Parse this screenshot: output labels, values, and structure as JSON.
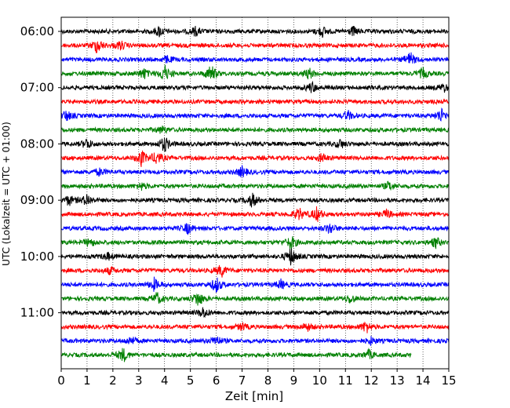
{
  "chart_data": {
    "type": "line",
    "title": "",
    "xlabel": "Zeit  [min]",
    "ylabel": "UTC (Lokalzeit = UTC + 01:00)",
    "xlim": [
      0,
      15
    ],
    "x_ticks": [
      "0",
      "1",
      "2",
      "3",
      "4",
      "5",
      "6",
      "7",
      "8",
      "9",
      "10",
      "11",
      "12",
      "13",
      "14",
      "15"
    ],
    "grid": "vertical-dotted",
    "y_ticks": [
      {
        "label": "06:00",
        "row": 0
      },
      {
        "label": "07:00",
        "row": 4
      },
      {
        "label": "08:00",
        "row": 8
      },
      {
        "label": "09:00",
        "row": 12
      },
      {
        "label": "10:00",
        "row": 16
      },
      {
        "label": "11:00",
        "row": 20
      }
    ],
    "color_cycle": [
      "#000000",
      "#ff0000",
      "#0000ff",
      "#008000"
    ],
    "rows": [
      {
        "start": "06:00",
        "end_minute": 15,
        "events": [
          {
            "t": 3.8,
            "amp": 0.6
          },
          {
            "t": 5.2,
            "amp": 0.5
          },
          {
            "t": 10.1,
            "amp": 0.6
          },
          {
            "t": 11.3,
            "amp": 0.5
          }
        ]
      },
      {
        "start": "06:15",
        "end_minute": 15,
        "events": [
          {
            "t": 1.4,
            "amp": 0.9
          },
          {
            "t": 2.3,
            "amp": 0.5
          }
        ]
      },
      {
        "start": "06:30",
        "end_minute": 15,
        "events": [
          {
            "t": 13.5,
            "amp": 0.8
          },
          {
            "t": 4.1,
            "amp": 0.4
          }
        ]
      },
      {
        "start": "06:45",
        "end_minute": 15,
        "events": [
          {
            "t": 4.0,
            "amp": 1.0
          },
          {
            "t": 5.8,
            "amp": 1.0
          },
          {
            "t": 3.2,
            "amp": 0.6
          },
          {
            "t": 9.6,
            "amp": 0.6
          },
          {
            "t": 14.0,
            "amp": 0.6
          }
        ]
      },
      {
        "start": "07:00",
        "end_minute": 15,
        "events": [
          {
            "t": 9.7,
            "amp": 0.6
          },
          {
            "t": 14.8,
            "amp": 0.5
          }
        ]
      },
      {
        "start": "07:15",
        "end_minute": 15,
        "events": []
      },
      {
        "start": "07:30",
        "end_minute": 15,
        "events": [
          {
            "t": 14.7,
            "amp": 0.8
          },
          {
            "t": 0.2,
            "amp": 0.6
          },
          {
            "t": 11.1,
            "amp": 0.5
          }
        ]
      },
      {
        "start": "07:45",
        "end_minute": 15,
        "events": [
          {
            "t": 3.9,
            "amp": 0.4
          }
        ]
      },
      {
        "start": "08:00",
        "end_minute": 15,
        "events": [
          {
            "t": 4.0,
            "amp": 0.9
          },
          {
            "t": 1.0,
            "amp": 0.6
          },
          {
            "t": 10.8,
            "amp": 0.5
          }
        ]
      },
      {
        "start": "08:15",
        "end_minute": 15,
        "events": [
          {
            "t": 3.1,
            "amp": 0.9
          },
          {
            "t": 3.7,
            "amp": 0.8
          },
          {
            "t": 10.1,
            "amp": 0.5
          }
        ]
      },
      {
        "start": "08:30",
        "end_minute": 15,
        "events": [
          {
            "t": 7.0,
            "amp": 0.6
          },
          {
            "t": 1.5,
            "amp": 0.4
          }
        ]
      },
      {
        "start": "08:45",
        "end_minute": 15,
        "events": [
          {
            "t": 12.7,
            "amp": 0.5
          },
          {
            "t": 3.1,
            "amp": 0.4
          }
        ]
      },
      {
        "start": "09:00",
        "end_minute": 15,
        "events": [
          {
            "t": 7.4,
            "amp": 0.8
          },
          {
            "t": 1.0,
            "amp": 0.7
          },
          {
            "t": 0.3,
            "amp": 0.6
          }
        ]
      },
      {
        "start": "09:15",
        "end_minute": 15,
        "events": [
          {
            "t": 9.2,
            "amp": 0.7
          },
          {
            "t": 9.9,
            "amp": 0.8
          },
          {
            "t": 12.6,
            "amp": 0.5
          }
        ]
      },
      {
        "start": "09:30",
        "end_minute": 15,
        "events": [
          {
            "t": 4.9,
            "amp": 0.6
          },
          {
            "t": 10.4,
            "amp": 0.6
          }
        ]
      },
      {
        "start": "09:45",
        "end_minute": 15,
        "events": [
          {
            "t": 8.9,
            "amp": 0.8
          },
          {
            "t": 14.5,
            "amp": 0.6
          },
          {
            "t": 1.1,
            "amp": 0.5
          }
        ]
      },
      {
        "start": "10:00",
        "end_minute": 15,
        "events": [
          {
            "t": 8.9,
            "amp": 1.0
          },
          {
            "t": 1.8,
            "amp": 0.4
          }
        ]
      },
      {
        "start": "10:15",
        "end_minute": 15,
        "events": [
          {
            "t": 6.2,
            "amp": 0.7
          },
          {
            "t": 1.9,
            "amp": 0.4
          }
        ]
      },
      {
        "start": "10:30",
        "end_minute": 15,
        "events": [
          {
            "t": 6.0,
            "amp": 0.9
          },
          {
            "t": 3.6,
            "amp": 0.7
          },
          {
            "t": 8.5,
            "amp": 0.5
          }
        ]
      },
      {
        "start": "10:45",
        "end_minute": 15,
        "events": [
          {
            "t": 5.3,
            "amp": 0.9
          },
          {
            "t": 3.7,
            "amp": 0.7
          },
          {
            "t": 11.2,
            "amp": 0.5
          }
        ]
      },
      {
        "start": "11:00",
        "end_minute": 15,
        "events": [
          {
            "t": 5.5,
            "amp": 0.6
          }
        ]
      },
      {
        "start": "11:15",
        "end_minute": 15,
        "events": [
          {
            "t": 11.8,
            "amp": 0.7
          },
          {
            "t": 9.5,
            "amp": 0.5
          },
          {
            "t": 7.0,
            "amp": 0.4
          }
        ]
      },
      {
        "start": "11:30",
        "end_minute": 15,
        "events": [
          {
            "t": 6.0,
            "amp": 0.6
          },
          {
            "t": 2.7,
            "amp": 0.5
          },
          {
            "t": 12.0,
            "amp": 0.4
          }
        ]
      },
      {
        "start": "11:45",
        "end_minute": 13.55,
        "events": [
          {
            "t": 2.4,
            "amp": 0.8
          },
          {
            "t": 11.9,
            "amp": 0.5
          }
        ]
      }
    ]
  }
}
